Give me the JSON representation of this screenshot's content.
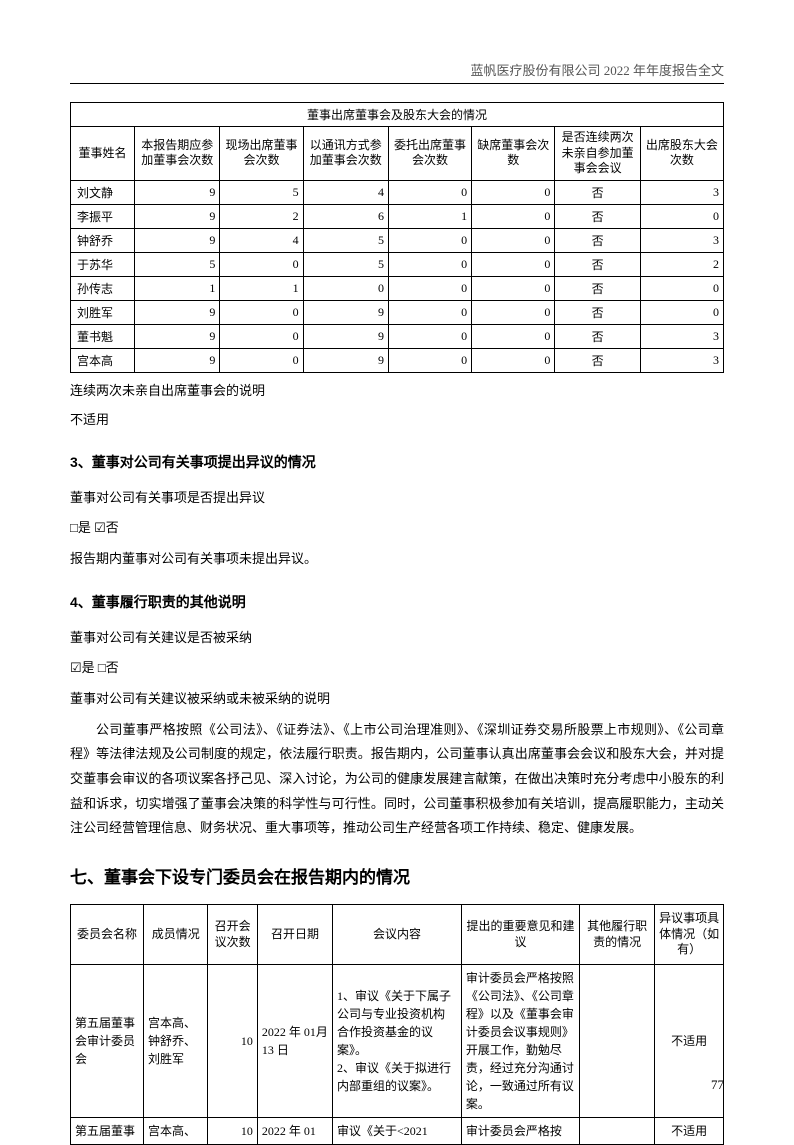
{
  "header": "蓝帆医疗股份有限公司 2022 年年度报告全文",
  "table1": {
    "title": "董事出席董事会及股东大会的情况",
    "headers": [
      "董事姓名",
      "本报告期应参加董事会次数",
      "现场出席董事会次数",
      "以通讯方式参加董事会次数",
      "委托出席董事会次数",
      "缺席董事会次数",
      "是否连续两次未亲自参加董事会会议",
      "出席股东大会次数"
    ],
    "rows": [
      [
        "刘文静",
        "9",
        "5",
        "4",
        "0",
        "0",
        "否",
        "3"
      ],
      [
        "李振平",
        "9",
        "2",
        "6",
        "1",
        "0",
        "否",
        "0"
      ],
      [
        "钟舒乔",
        "9",
        "4",
        "5",
        "0",
        "0",
        "否",
        "3"
      ],
      [
        "于苏华",
        "5",
        "0",
        "5",
        "0",
        "0",
        "否",
        "2"
      ],
      [
        "孙传志",
        "1",
        "1",
        "0",
        "0",
        "0",
        "否",
        "0"
      ],
      [
        "刘胜军",
        "9",
        "0",
        "9",
        "0",
        "0",
        "否",
        "0"
      ],
      [
        "董书魁",
        "9",
        "0",
        "9",
        "0",
        "0",
        "否",
        "3"
      ],
      [
        "宫本高",
        "9",
        "0",
        "9",
        "0",
        "0",
        "否",
        "3"
      ]
    ]
  },
  "note1a": "连续两次未亲自出席董事会的说明",
  "note1b": "不适用",
  "sec3": {
    "title": "3、董事对公司有关事项提出异议的情况",
    "p1": "董事对公司有关事项是否提出异议",
    "p2": "□是 ☑否",
    "p3": "报告期内董事对公司有关事项未提出异议。"
  },
  "sec4": {
    "title": "4、董事履行职责的其他说明",
    "p1": "董事对公司有关建议是否被采纳",
    "p2": "☑是 □否",
    "p3": "董事对公司有关建议被采纳或未被采纳的说明",
    "body": "公司董事严格按照《公司法》、《证券法》、《上市公司治理准则》、《深圳证券交易所股票上市规则》、《公司章程》等法律法规及公司制度的规定，依法履行职责。报告期内，公司董事认真出席董事会会议和股东大会，并对提交董事会审议的各项议案各抒己见、深入讨论，为公司的健康发展建言献策，在做出决策时充分考虑中小股东的利益和诉求，切实增强了董事会决策的科学性与可行性。同时，公司董事积极参加有关培训，提高履职能力，主动关注公司经营管理信息、财务状况、重大事项等，推动公司生产经营各项工作持续、稳定、健康发展。"
  },
  "sec7": {
    "title": "七、董事会下设专门委员会在报告期内的情况"
  },
  "table2": {
    "headers": [
      "委员会名称",
      "成员情况",
      "召开会议次数",
      "召开日期",
      "会议内容",
      "提出的重要意见和建议",
      "其他履行职责的情况",
      "异议事项具体情况（如有）"
    ],
    "rows": [
      [
        "第五届董事会审计委员会",
        "宫本高、钟舒乔、刘胜军",
        "10",
        "2022 年 01月 13 日",
        "1、审议《关于下属子公司与专业投资机构合作投资基金的议案》。\n2、审议《关于拟进行内部重组的议案》。",
        "审计委员会严格按照《公司法》、《公司章程》以及《董事会审计委员会议事规则》开展工作，勤勉尽责，经过充分沟通讨论，一致通过所有议案。",
        "",
        "不适用"
      ],
      [
        "第五届董事",
        "宫本高、",
        "10",
        "2022 年 01",
        "审议《关于<2021",
        "审计委员会严格按",
        "",
        "不适用"
      ]
    ]
  },
  "page": "77"
}
